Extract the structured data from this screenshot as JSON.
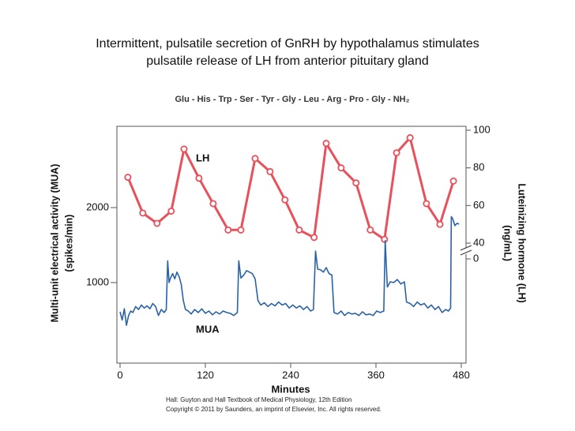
{
  "chart_data": {
    "type": "line",
    "title": [
      "Intermittent, pulsatile secretion of GnRH by hypothalamus stimulates",
      "pulsatile release of LH from anterior pituitary gland"
    ],
    "subtitle": "Glu - His - Trp - Ser - Tyr - Gly - Leu - Arg - Pro - Gly - NH₂",
    "xlabel": "Minutes",
    "ylabel": [
      "Multi-unit electrical activity (MUA)",
      "(spikes/min)"
    ],
    "y2label": [
      "Luteinizing hormone (LH)",
      "(ng/mL)"
    ],
    "annotations": [
      "LH",
      "MUA"
    ],
    "credits": [
      "Hall: Guyton and Hall Textbook of Medical Physiology, 12th Edition",
      "Copyright © 2011 by Saunders, an imprint of Elsevier, Inc. All rights reserved."
    ],
    "xlim": [
      0,
      480
    ],
    "xticks": [
      0,
      120,
      240,
      360,
      480
    ],
    "ylim": [
      -75,
      3085
    ],
    "yticks": [
      1000,
      2000
    ],
    "y2lim": [
      40,
      100
    ],
    "y2ticks": [
      0,
      40,
      60,
      80,
      100
    ],
    "y2_axis_break": true,
    "series": [
      {
        "name": "LH",
        "color": "#e8505b",
        "axis": "y2",
        "markers": true,
        "x": [
          11,
          32,
          52,
          72,
          90,
          111,
          131,
          152,
          170,
          190,
          211,
          232,
          252,
          273,
          290,
          311,
          332,
          352,
          372,
          389,
          408,
          431,
          450,
          469
        ],
        "values": [
          75,
          56,
          50.5,
          57,
          90,
          74.5,
          61,
          47,
          47,
          85,
          78,
          63,
          47,
          43,
          93,
          80,
          72,
          47,
          42,
          88,
          96,
          61,
          50,
          73
        ]
      },
      {
        "name": "MUA",
        "color": "#2a62a8",
        "axis": "y",
        "markers": false,
        "x": [
          0,
          3,
          6,
          9,
          12,
          15,
          18,
          22,
          26,
          30,
          34,
          38,
          42,
          46,
          50,
          54,
          58,
          62,
          65,
          67,
          69,
          71,
          74,
          77,
          80,
          83,
          86,
          89,
          92,
          96,
          100,
          105,
          110,
          115,
          120,
          125,
          130,
          135,
          140,
          145,
          150,
          155,
          160,
          165,
          167,
          170,
          174,
          178,
          182,
          186,
          190,
          194,
          198,
          203,
          208,
          213,
          218,
          223,
          228,
          233,
          238,
          243,
          248,
          253,
          258,
          263,
          268,
          272,
          275,
          278,
          282,
          286,
          290,
          294,
          298,
          301,
          306,
          311,
          316,
          321,
          326,
          331,
          336,
          341,
          346,
          351,
          356,
          361,
          366,
          371,
          373,
          376,
          380,
          385,
          390,
          395,
          400,
          403,
          408,
          413,
          418,
          423,
          428,
          433,
          438,
          443,
          448,
          453,
          458,
          462,
          465,
          466,
          468,
          471,
          474,
          477
        ],
        "values": [
          610,
          500,
          650,
          430,
          560,
          620,
          600,
          680,
          640,
          700,
          660,
          690,
          650,
          720,
          680,
          560,
          640,
          600,
          640,
          1290,
          1000,
          1060,
          1120,
          1050,
          1140,
          1080,
          980,
          760,
          640,
          620,
          580,
          640,
          600,
          650,
          590,
          620,
          570,
          610,
          580,
          620,
          600,
          590,
          560,
          600,
          1290,
          1060,
          1100,
          1160,
          1140,
          1120,
          1050,
          760,
          700,
          730,
          680,
          720,
          690,
          740,
          700,
          720,
          660,
          700,
          660,
          690,
          640,
          680,
          620,
          640,
          1420,
          1180,
          1170,
          1140,
          1200,
          1120,
          1100,
          600,
          580,
          620,
          560,
          600,
          580,
          590,
          560,
          610,
          570,
          580,
          560,
          620,
          600,
          620,
          1560,
          940,
          1010,
          1000,
          1040,
          980,
          1010,
          740,
          720,
          680,
          740,
          700,
          720,
          660,
          700,
          640,
          680,
          600,
          640,
          620,
          660,
          1880,
          1850,
          1760,
          1790,
          1780
        ]
      }
    ]
  }
}
